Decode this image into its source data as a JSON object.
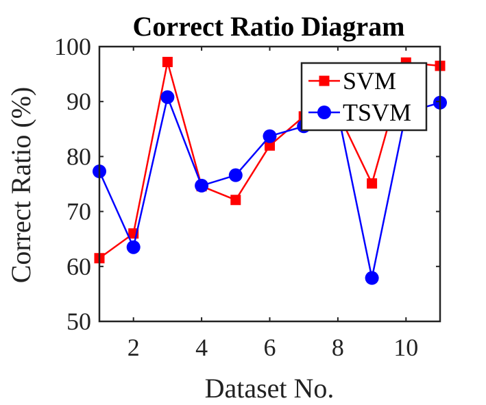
{
  "chart_data": {
    "type": "line",
    "title": "Correct Ratio Diagram",
    "xlabel": "Dataset No.",
    "ylabel": "Correct Ratio (%)",
    "xlim": [
      1,
      11
    ],
    "ylim": [
      50,
      100
    ],
    "xticks": [
      2,
      4,
      6,
      8,
      10
    ],
    "yticks": [
      50,
      60,
      70,
      80,
      90,
      100
    ],
    "grid": false,
    "legend_position": "top-right",
    "x": [
      1,
      2,
      3,
      4,
      5,
      6,
      7,
      8,
      9,
      10,
      11
    ],
    "series": [
      {
        "name": "SVM",
        "color": "#ff0000",
        "marker": "square",
        "values": [
          61.5,
          66.0,
          97.2,
          74.6,
          72.1,
          82.0,
          87.3,
          88.0,
          75.1,
          97.1,
          96.5
        ]
      },
      {
        "name": "TSVM",
        "color": "#0000ff",
        "marker": "circle",
        "values": [
          77.3,
          63.5,
          90.8,
          74.7,
          76.6,
          83.7,
          85.5,
          88.0,
          57.9,
          88.0,
          89.8
        ]
      }
    ]
  }
}
